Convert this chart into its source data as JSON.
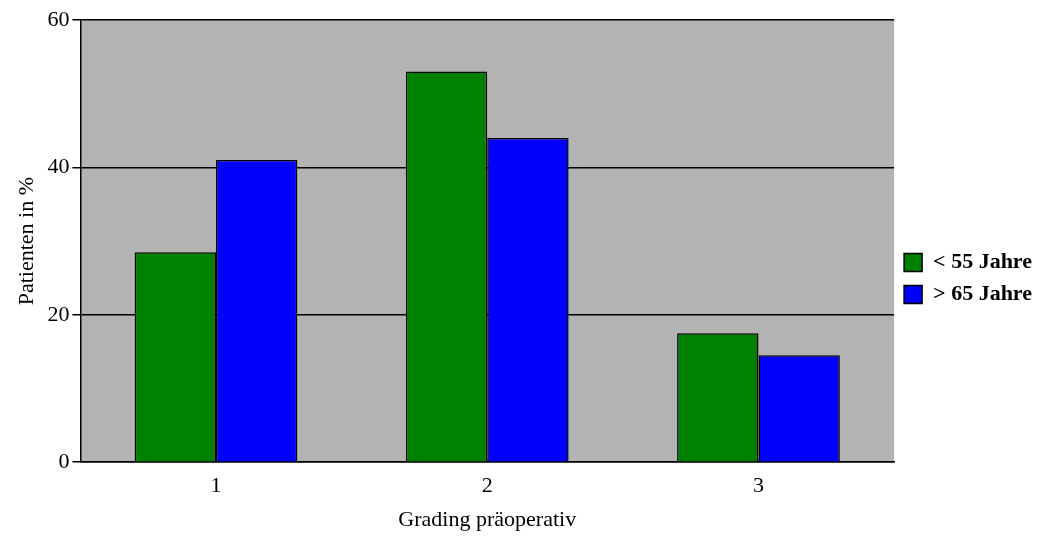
{
  "chart_data": {
    "type": "bar",
    "xlabel": "Grading präoperativ",
    "ylabel": "Patienten in %",
    "categories": [
      "1",
      "2",
      "3"
    ],
    "series": [
      {
        "name": "< 55 Jahre",
        "color": "#008000",
        "values": [
          28.5,
          53,
          17.5
        ]
      },
      {
        "name": "> 65 Jahre",
        "color": "#0000ff",
        "values": [
          41,
          44,
          14.5
        ]
      }
    ],
    "ylim": [
      0,
      60
    ],
    "yticks": [
      0,
      20,
      40,
      60
    ],
    "grid": "y",
    "legend": "right"
  }
}
